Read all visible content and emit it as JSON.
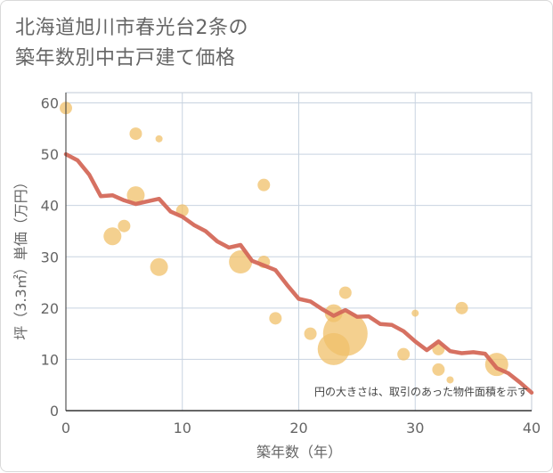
{
  "title": "北海道旭川市春光台2条の\n築年数別中古戸建て価格",
  "note": "円の大きさは、取引のあった物件面積を示す",
  "colors": {
    "line": "#d4695a",
    "bubble": "#f0c06a",
    "grid": "#c8d3e0",
    "axis": "#666666",
    "frame_border": "#d9d9d9"
  },
  "chart_data": {
    "type": "scatter",
    "xlabel": "築年数（年）",
    "ylabel": "坪（3.3㎡）単価（万円）",
    "xlim": [
      0,
      40
    ],
    "ylim": [
      0,
      62
    ],
    "xticks": [
      0,
      10,
      20,
      30,
      40
    ],
    "yticks": [
      0,
      10,
      20,
      30,
      40,
      50,
      60
    ],
    "grid": true,
    "line_series": {
      "x": [
        0,
        1,
        2,
        3,
        4,
        5,
        6,
        7,
        8,
        9,
        10,
        11,
        12,
        13,
        14,
        15,
        16,
        17,
        18,
        19,
        20,
        21,
        22,
        23,
        24,
        25,
        26,
        27,
        28,
        29,
        30,
        31,
        32,
        33,
        34,
        35,
        36,
        37,
        38,
        39,
        40
      ],
      "y": [
        50,
        48.8,
        46,
        41.8,
        42,
        41,
        40.3,
        40.8,
        41.3,
        38.8,
        37.8,
        36.2,
        35,
        33,
        31.8,
        32.3,
        29.2,
        28.3,
        27.4,
        24.5,
        21.8,
        21.3,
        19.8,
        18.5,
        19.6,
        18.3,
        18.4,
        16.9,
        16.7,
        15.5,
        13.5,
        11.8,
        13.5,
        11.6,
        11.2,
        11.4,
        11.1,
        8.3,
        7.3,
        5.5,
        3.5
      ]
    },
    "bubbles": [
      {
        "x": 0,
        "y": 59,
        "size": "small"
      },
      {
        "x": 6,
        "y": 54,
        "size": "small"
      },
      {
        "x": 8,
        "y": 53,
        "size": "tiny"
      },
      {
        "x": 17,
        "y": 44,
        "size": "small"
      },
      {
        "x": 6,
        "y": 42,
        "size": "medium"
      },
      {
        "x": 10,
        "y": 39,
        "size": "small"
      },
      {
        "x": 5,
        "y": 36,
        "size": "small"
      },
      {
        "x": 4,
        "y": 34,
        "size": "medium"
      },
      {
        "x": 15,
        "y": 29,
        "size": "large"
      },
      {
        "x": 17,
        "y": 29,
        "size": "small"
      },
      {
        "x": 8,
        "y": 28,
        "size": "medium"
      },
      {
        "x": 24,
        "y": 23,
        "size": "small"
      },
      {
        "x": 23,
        "y": 19,
        "size": "medium"
      },
      {
        "x": 34,
        "y": 20,
        "size": "small"
      },
      {
        "x": 30,
        "y": 19,
        "size": "tiny"
      },
      {
        "x": 18,
        "y": 18,
        "size": "small"
      },
      {
        "x": 24,
        "y": 15,
        "size": "xxlarge"
      },
      {
        "x": 21,
        "y": 15,
        "size": "small"
      },
      {
        "x": 23,
        "y": 12,
        "size": "xlarge"
      },
      {
        "x": 32,
        "y": 12,
        "size": "small"
      },
      {
        "x": 29,
        "y": 11,
        "size": "small"
      },
      {
        "x": 37,
        "y": 9,
        "size": "large"
      },
      {
        "x": 32,
        "y": 8,
        "size": "small"
      },
      {
        "x": 33,
        "y": 6,
        "size": "tiny"
      }
    ]
  }
}
